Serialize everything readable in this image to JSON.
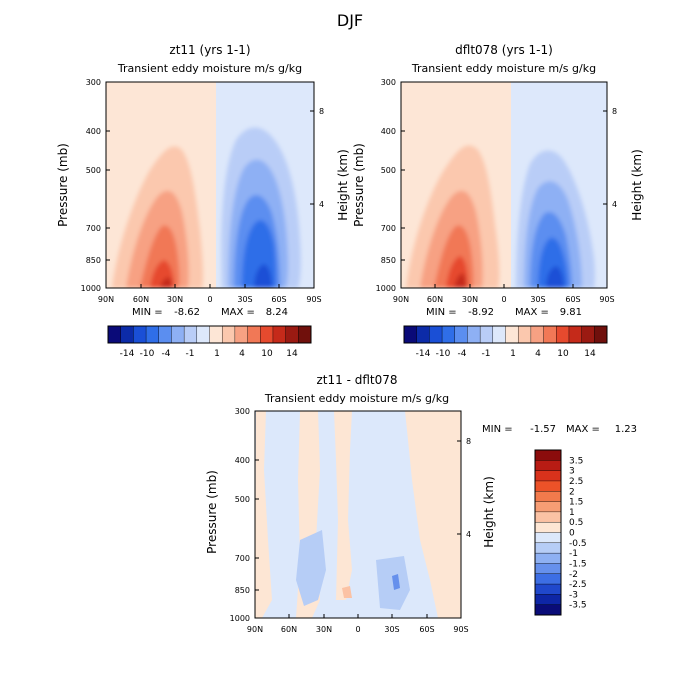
{
  "figure_title": "DJF",
  "min_label": "MIN =",
  "max_label": "MAX =",
  "chart_data": [
    {
      "type": "heatmap",
      "title": "zt11 (yrs 1-1)",
      "subtitle": "Transient eddy moisture m/s g/kg",
      "ylabel": "Pressure (mb)",
      "ylabel_right": "Height (km)",
      "xlabel": "",
      "x_ticks": [
        "90N",
        "60N",
        "30N",
        "0",
        "30S",
        "60S",
        "90S"
      ],
      "y_ticks": [
        "300",
        "400",
        "500",
        "700",
        "850",
        "1000"
      ],
      "y_ticks_right": [
        "8",
        "4"
      ],
      "x_range": [
        90,
        -90
      ],
      "y_range": [
        1000,
        300
      ],
      "min": "-8.62",
      "max": "8.24",
      "colorbar_ticks": [
        "-14",
        "-10",
        "-4",
        "-1",
        "1",
        "4",
        "10",
        "14"
      ],
      "colorbar_colors": [
        "#0a0a78",
        "#0c2ba8",
        "#1a4fd6",
        "#2f6ee8",
        "#5b8ef0",
        "#8eb0f4",
        "#b9cdf7",
        "#dde8fb",
        "#fde6d6",
        "#fbc8ae",
        "#f7a183",
        "#f17856",
        "#e64a2e",
        "#c52a1a",
        "#9b1a12",
        "#70100c"
      ]
    },
    {
      "type": "heatmap",
      "title": "dflt078 (yrs 1-1)",
      "subtitle": "Transient eddy moisture m/s g/kg",
      "ylabel": "Pressure (mb)",
      "ylabel_right": "Height (km)",
      "xlabel": "",
      "x_ticks": [
        "90N",
        "60N",
        "30N",
        "0",
        "30S",
        "60S",
        "90S"
      ],
      "y_ticks": [
        "300",
        "400",
        "500",
        "700",
        "850",
        "1000"
      ],
      "y_ticks_right": [
        "8",
        "4"
      ],
      "x_range": [
        90,
        -90
      ],
      "y_range": [
        1000,
        300
      ],
      "min": "-8.92",
      "max": "9.81",
      "colorbar_ticks": [
        "-14",
        "-10",
        "-4",
        "-1",
        "1",
        "4",
        "10",
        "14"
      ],
      "colorbar_colors": [
        "#0a0a78",
        "#0c2ba8",
        "#1a4fd6",
        "#2f6ee8",
        "#5b8ef0",
        "#8eb0f4",
        "#b9cdf7",
        "#dde8fb",
        "#fde6d6",
        "#fbc8ae",
        "#f7a183",
        "#f17856",
        "#e64a2e",
        "#c52a1a",
        "#9b1a12",
        "#70100c"
      ]
    },
    {
      "type": "heatmap",
      "title": "zt11 - dflt078",
      "subtitle": "Transient eddy moisture m/s g/kg",
      "ylabel": "Pressure (mb)",
      "ylabel_right": "Height (km)",
      "xlabel": "",
      "x_ticks": [
        "90N",
        "60N",
        "30N",
        "0",
        "30S",
        "60S",
        "90S"
      ],
      "y_ticks": [
        "300",
        "400",
        "500",
        "700",
        "850",
        "1000"
      ],
      "y_ticks_right": [
        "8",
        "4"
      ],
      "x_range": [
        90,
        -90
      ],
      "y_range": [
        1000,
        300
      ],
      "min": "-1.57",
      "max": "1.23",
      "colorbar_ticks": [
        "3.5",
        "3",
        "2.5",
        "2",
        "1.5",
        "1",
        "0.5",
        "0",
        "-0.5",
        "-1",
        "-1.5",
        "-2",
        "-2.5",
        "-3",
        "-3.5"
      ],
      "colorbar_colors": [
        "#8b0c0c",
        "#b81c14",
        "#d8321c",
        "#ec5228",
        "#f27a4c",
        "#f79d74",
        "#fbc2a4",
        "#fde6d4",
        "#dce8fb",
        "#b6cdf6",
        "#8eb0f2",
        "#6690ec",
        "#3d6ee4",
        "#2048cc",
        "#0e26a6",
        "#0a0c78"
      ]
    }
  ]
}
